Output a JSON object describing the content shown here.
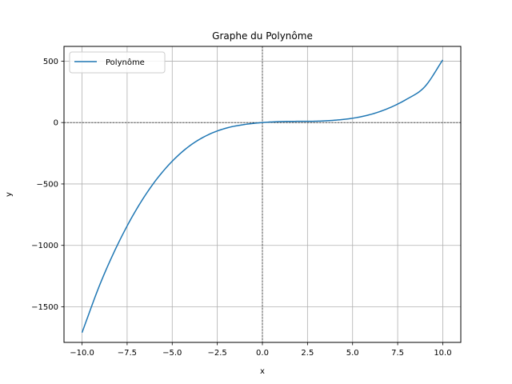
{
  "chart_data": {
    "type": "line",
    "title": "Graphe du Polynôme",
    "xlabel": "x",
    "ylabel": "y",
    "xlim": [
      -11,
      11
    ],
    "ylim": [
      -1790,
      620
    ],
    "xticks": [
      -10.0,
      -7.5,
      -5.0,
      -2.5,
      0.0,
      2.5,
      5.0,
      7.5,
      10.0
    ],
    "xtick_labels": [
      "−10.0",
      "−7.5",
      "−5.0",
      "−2.5",
      "0.0",
      "2.5",
      "5.0",
      "7.5",
      "10.0"
    ],
    "yticks": [
      -1500,
      -1000,
      -500,
      0,
      500
    ],
    "ytick_labels": [
      "−1500",
      "−1000",
      "−500",
      "0",
      "500"
    ],
    "grid": true,
    "reference_lines": {
      "x0": true,
      "y0": true
    },
    "legend": {
      "position": "upper-left",
      "entries": [
        "Polynôme"
      ]
    },
    "series": [
      {
        "name": "Polynôme",
        "color": "#1f77b4",
        "x": [
          -10,
          -9,
          -8,
          -7,
          -6,
          -5,
          -4,
          -3,
          -2,
          -1,
          0,
          1,
          2,
          3,
          4,
          5,
          6,
          7,
          8,
          9,
          10
        ],
        "y": [
          -1710,
          -1315,
          -986,
          -711,
          -488,
          -315,
          -186,
          -99,
          -45,
          -16,
          0,
          8,
          10,
          11,
          19,
          35,
          66,
          117,
          190,
          291,
          510
        ]
      }
    ]
  }
}
